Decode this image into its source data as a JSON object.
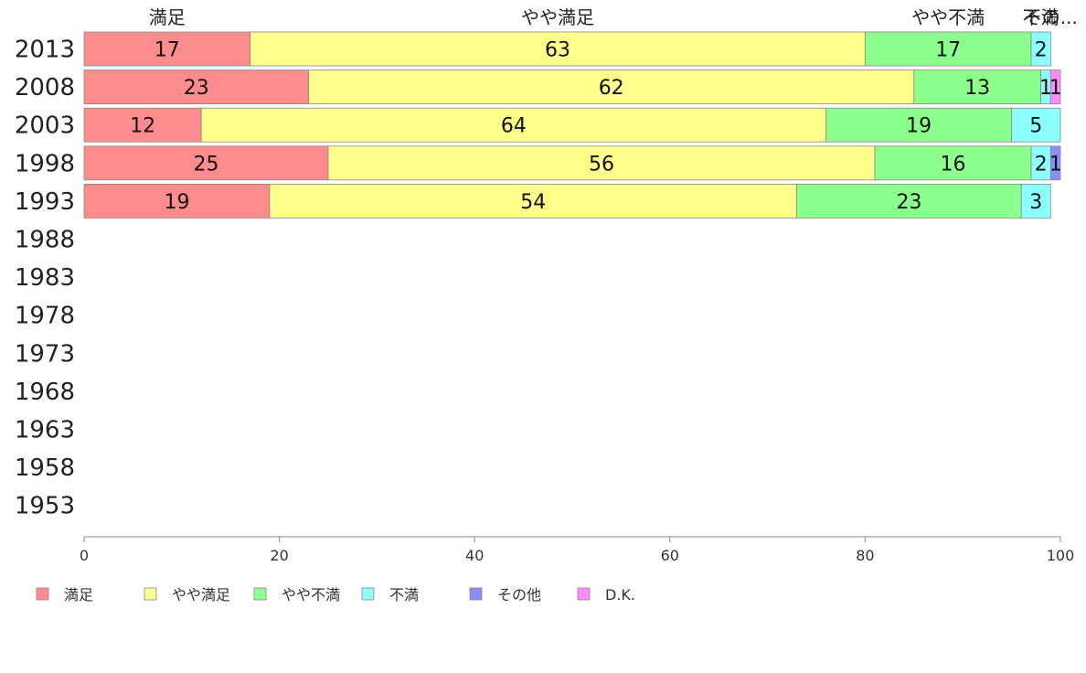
{
  "chart_data": {
    "type": "bar",
    "orientation": "horizontal",
    "stacked": true,
    "categories": [
      "2013",
      "2008",
      "2003",
      "1998",
      "1993",
      "1988",
      "1983",
      "1978",
      "1973",
      "1968",
      "1963",
      "1958",
      "1953"
    ],
    "series": [
      {
        "name": "満足",
        "color": "#ff8c8c",
        "values": [
          17,
          23,
          12,
          25,
          19,
          null,
          null,
          null,
          null,
          null,
          null,
          null,
          null
        ]
      },
      {
        "name": "やや満足",
        "color": "#ffff8c",
        "values": [
          63,
          62,
          64,
          56,
          54,
          null,
          null,
          null,
          null,
          null,
          null,
          null,
          null
        ]
      },
      {
        "name": "やや不満",
        "color": "#8cff8c",
        "values": [
          17,
          13,
          19,
          16,
          23,
          null,
          null,
          null,
          null,
          null,
          null,
          null,
          null
        ]
      },
      {
        "name": "不満",
        "color": "#8cffff",
        "values": [
          2,
          1,
          5,
          2,
          3,
          null,
          null,
          null,
          null,
          null,
          null,
          null,
          null
        ]
      },
      {
        "name": "その他",
        "color": "#8c8cff",
        "values": [
          0,
          0,
          0,
          1,
          0,
          null,
          null,
          null,
          null,
          null,
          null,
          null,
          null
        ]
      },
      {
        "name": "D.K.",
        "color": "#ff8cff",
        "values": [
          0,
          1,
          0,
          0,
          0,
          null,
          null,
          null,
          null,
          null,
          null,
          null,
          null
        ]
      }
    ],
    "top_labels": [
      "満足",
      "やや満足",
      "やや不満",
      "不満",
      "その..."
    ],
    "xlim": [
      0,
      100
    ],
    "xticks": [
      0,
      20,
      40,
      60,
      80,
      100
    ],
    "grid": false,
    "legend_position": "bottom"
  }
}
